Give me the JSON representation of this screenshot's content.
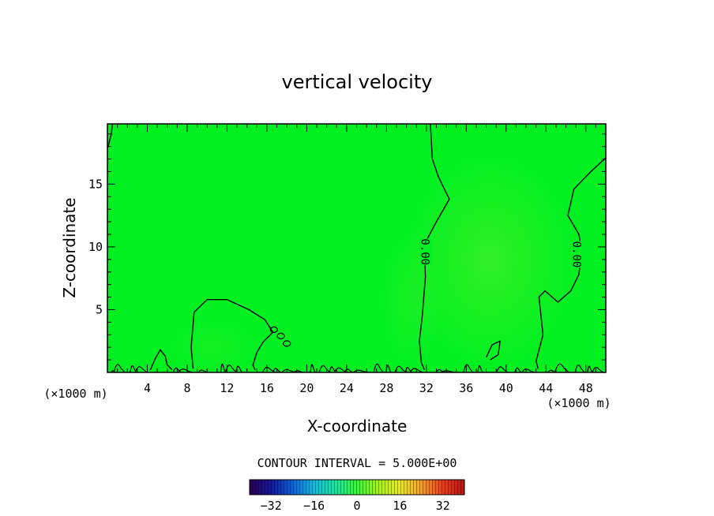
{
  "chart_data": {
    "type": "heatmap",
    "title": "vertical velocity",
    "xlabel": "X-coordinate",
    "ylabel": "Z-coordinate",
    "x_unit": "(×1000 m)",
    "xlim": [
      0,
      50
    ],
    "ylim": [
      0,
      19.8
    ],
    "x_ticks": [
      4,
      8,
      12,
      16,
      20,
      24,
      28,
      32,
      36,
      40,
      44,
      48
    ],
    "y_ticks": [
      5,
      10,
      15
    ],
    "contour_interval_text": "CONTOUR INTERVAL = 5.000E+00",
    "contour_label": "0.00",
    "field_note": "values near 0 everywhere (green)",
    "colorbar": {
      "range": [
        -40,
        40
      ],
      "ticks": [
        -32,
        -16,
        0,
        16,
        32
      ],
      "colors": [
        "#2a0050",
        "#141890",
        "#1060d0",
        "#18b8d8",
        "#20e0a0",
        "#40f040",
        "#a8f020",
        "#e8e830",
        "#f0a030",
        "#e04020",
        "#b01818"
      ]
    },
    "zero_contours": [
      {
        "name": "left-edge",
        "points": [
          [
            0,
            17.8
          ],
          [
            0.4,
            19.0
          ],
          [
            0.5,
            19.8
          ]
        ]
      },
      {
        "name": "bump-8-18",
        "points": [
          [
            8.6,
            0.3
          ],
          [
            8.4,
            2.0
          ],
          [
            8.7,
            4.8
          ],
          [
            10,
            5.8
          ],
          [
            12,
            5.8
          ],
          [
            14.2,
            5.0
          ],
          [
            15.8,
            4.2
          ],
          [
            16.6,
            3.2
          ],
          [
            15.6,
            2.4
          ],
          [
            15.0,
            1.6
          ],
          [
            14.6,
            0.6
          ],
          [
            14.8,
            0.2
          ]
        ]
      },
      {
        "name": "left-ripple",
        "points": [
          [
            4.3,
            0.2
          ],
          [
            4.8,
            1.1
          ],
          [
            5.3,
            1.8
          ],
          [
            5.8,
            1.3
          ],
          [
            6.0,
            0.6
          ],
          [
            6.5,
            0.2
          ]
        ]
      },
      {
        "name": "main-32-34",
        "points": [
          [
            32.4,
            19.8
          ],
          [
            32.6,
            17.0
          ],
          [
            33.2,
            15.6
          ],
          [
            34.3,
            13.8
          ],
          [
            33.0,
            12.0
          ],
          [
            31.8,
            10.2
          ],
          [
            31.9,
            7.6
          ],
          [
            31.6,
            4.6
          ],
          [
            31.3,
            2.5
          ],
          [
            31.5,
            0.8
          ],
          [
            31.8,
            0.2
          ]
        ]
      },
      {
        "name": "east-46-50",
        "points": [
          [
            50,
            17.1
          ],
          [
            48.5,
            16.0
          ],
          [
            46.8,
            14.6
          ],
          [
            46.2,
            12.5
          ],
          [
            47.3,
            11.0
          ],
          [
            47.6,
            9.6
          ],
          [
            47.3,
            7.8
          ],
          [
            46.5,
            6.5
          ],
          [
            45.2,
            5.6
          ],
          [
            43.9,
            6.5
          ],
          [
            43.3,
            6.0
          ],
          [
            43.7,
            3.0
          ],
          [
            43.0,
            0.9
          ],
          [
            43.2,
            0.3
          ]
        ]
      },
      {
        "name": "ripple-40",
        "points": [
          [
            38.0,
            1.2
          ],
          [
            38.6,
            2.2
          ],
          [
            39.4,
            2.5
          ],
          [
            39.2,
            1.4
          ],
          [
            38.4,
            1.0
          ]
        ]
      }
    ]
  }
}
